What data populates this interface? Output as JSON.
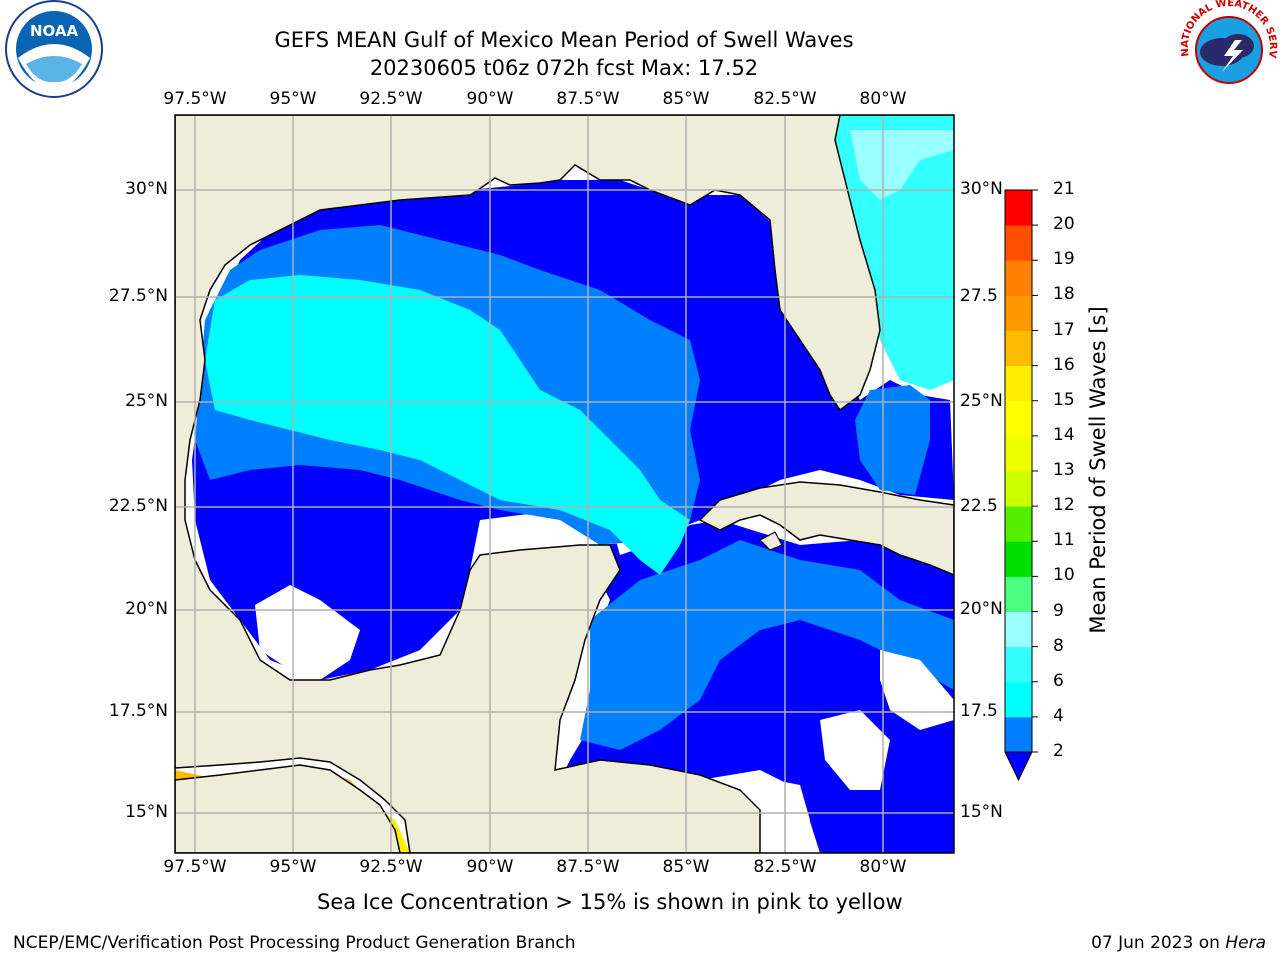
{
  "title_line1": "GEFS MEAN Gulf of Mexico Mean Period of Swell Waves",
  "title_line2": "20230605 t06z 072h fcst   Max: 17.52",
  "x_ticks": [
    "97.5°W",
    "95°W",
    "92.5°W",
    "90°W",
    "87.5°W",
    "85°W",
    "82.5°W",
    "80°W"
  ],
  "y_ticks_left": [
    "30°N",
    "27.5°N",
    "25°N",
    "22.5°N",
    "20°N",
    "17.5°N",
    "15°N"
  ],
  "y_ticks_right": [
    "30°N",
    "27.5",
    "25°N",
    "22.5",
    "20°N",
    "17.5",
    "15°N"
  ],
  "colorbar": {
    "label": "Mean Period of Swell Waves [s]",
    "ticks": [
      "21",
      "20",
      "19",
      "18",
      "17",
      "16",
      "15",
      "14",
      "13",
      "12",
      "11",
      "10",
      "9",
      "8",
      "6",
      "4",
      "2"
    ],
    "colors": {
      "2-4": "#0080ff",
      "4-6": "#00ffff",
      "6-8": "#33ffff",
      "8-9": "#99ffff",
      "9-10": "#4dff80",
      "10-11": "#00e000",
      "11-12": "#55ee00",
      "12-13": "#ccff00",
      "13-14": "#eeff00",
      "14-15": "#ffff00",
      "15-16": "#ffee00",
      "16-17": "#ffbb00",
      "17-18": "#ff9900",
      "18-19": "#ff8000",
      "19-20": "#ff5000",
      "20-21": "#ff0000",
      "under": "#0000ff"
    }
  },
  "land_color": "#eeedda",
  "note": "Sea Ice Concentration > 15% is shown in pink to yellow",
  "footer_left": "NCEP/EMC/Verification Post Processing Product Generation Branch",
  "footer_date": "07 Jun 2023 on ",
  "footer_host": "Hera",
  "logos": {
    "noaa_text": "NOAA",
    "nws_text": "NATIONAL WEATHER SERVICE"
  },
  "chart_data": {
    "type": "heatmap",
    "field": "Mean Period of Swell Waves",
    "units": "s",
    "max": 17.52,
    "lon_range": [
      -98.0,
      -78.25
    ],
    "lat_range": [
      14.0,
      31.75
    ],
    "levels": [
      2,
      4,
      6,
      8,
      9,
      10,
      11,
      12,
      13,
      14,
      15,
      16,
      17,
      18,
      19,
      20,
      21
    ]
  }
}
